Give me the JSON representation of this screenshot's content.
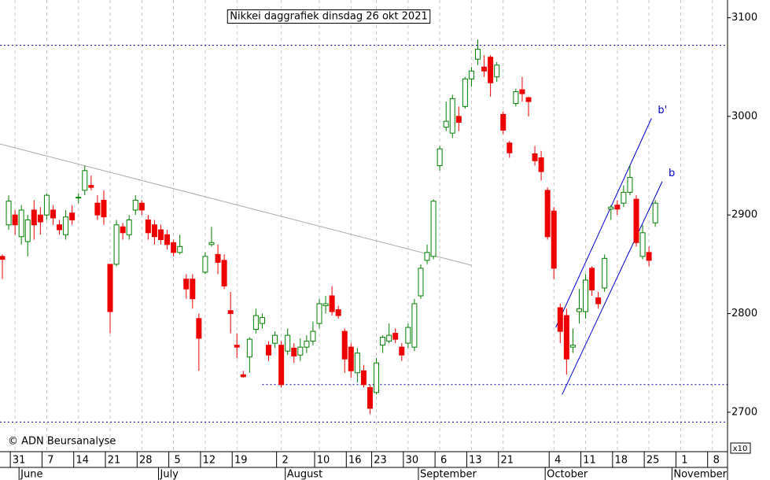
{
  "chart_data": {
    "type": "candlestick",
    "title": "Nikkei daggrafiek dinsdag 26 okt 2021",
    "copyright": "© ADN Beursanalyse",
    "scale_note": "x10",
    "categories": [
      null,
      null,
      "31",
      null,
      null,
      null,
      null,
      "7",
      null,
      null,
      null,
      null,
      "14",
      null,
      null,
      null,
      null,
      "21",
      null,
      null,
      null,
      null,
      "28",
      null,
      null,
      null,
      null,
      "5",
      null,
      null,
      null,
      null,
      "12",
      null,
      null,
      null,
      null,
      "19",
      null,
      null,
      null,
      null,
      null,
      null,
      "2",
      null,
      null,
      null,
      null,
      null,
      "10",
      null,
      null,
      null,
      null,
      "16",
      null,
      null,
      null,
      "23",
      null,
      null,
      null,
      null,
      "30",
      null,
      null,
      null,
      null,
      "6",
      null,
      null,
      null,
      null,
      "13",
      null,
      null,
      null,
      null,
      "21",
      null,
      null,
      null,
      null,
      null,
      null,
      null,
      "4",
      null,
      null,
      null,
      null,
      "11",
      null,
      null,
      null,
      null,
      "18",
      null,
      null,
      null,
      null,
      "25",
      null,
      null,
      null,
      null,
      "1",
      null,
      null,
      null,
      null,
      "8"
    ],
    "months": [
      null,
      null,
      null,
      "June",
      null,
      null,
      null,
      null,
      null,
      null,
      null,
      null,
      null,
      null,
      null,
      null,
      null,
      null,
      null,
      null,
      null,
      null,
      null,
      null,
      null,
      "July",
      null,
      null,
      null,
      null,
      null,
      null,
      null,
      null,
      null,
      null,
      null,
      null,
      null,
      null,
      null,
      null,
      null,
      null,
      null,
      "August",
      null,
      null,
      null,
      null,
      null,
      null,
      null,
      null,
      null,
      null,
      null,
      null,
      null,
      null,
      null,
      null,
      null,
      null,
      null,
      null,
      "September",
      null,
      null,
      null,
      null,
      null,
      null,
      null,
      null,
      null,
      null,
      null,
      null,
      null,
      null,
      null,
      null,
      null,
      null,
      null,
      "October",
      null,
      null,
      null,
      null,
      null,
      null,
      null,
      null,
      null,
      null,
      null,
      null,
      null,
      null,
      null,
      null,
      null,
      null,
      null,
      "November",
      null,
      null,
      null,
      null,
      null
    ],
    "open": [
      2858,
      2890,
      2900,
      2878,
      2873,
      2905,
      2900,
      2900,
      2905,
      2890,
      2880,
      2902,
      2918,
      2925,
      2930,
      2912,
      2915,
      2850,
      2850,
      2888,
      2880,
      2905,
      2912,
      2895,
      2890,
      2885,
      2880,
      2872,
      2862,
      2835,
      2835,
      2795,
      2842,
      2870,
      2860,
      2854,
      2803,
      2768,
      2738,
      2756,
      2784,
      2790,
      2768,
      2770,
      2768,
      2762,
      2765,
      2758,
      2766,
      2772,
      2790,
      2808,
      2818,
      2804,
      2782,
      2766,
      2740,
      2742,
      2725,
      2720,
      2768,
      2772,
      2780,
      2766,
      2770,
      2766,
      2818,
      2854,
      2858,
      2950,
      2989,
      2983,
      3000,
      3010,
      3038,
      3058,
      3050,
      3060,
      3040,
      3002,
      2973,
      3013,
      3027,
      3019,
      2962,
      2958,
      2925,
      2904,
      2806,
      2798,
      2766,
      2802,
      2802,
      2846,
      2816,
      2826,
      2906,
      2910,
      2912,
      2923,
      2916,
      2858,
      2862,
      2892,
      null,
      null,
      null,
      null,
      null,
      null,
      null,
      null,
      null
    ],
    "high": [
      2860,
      2920,
      2905,
      2910,
      2900,
      2915,
      2908,
      2922,
      2910,
      2895,
      2905,
      2910,
      2922,
      2950,
      2940,
      2920,
      2925,
      2850,
      2895,
      2892,
      2900,
      2920,
      2915,
      2900,
      2895,
      2890,
      2885,
      2875,
      2880,
      2840,
      2840,
      2800,
      2862,
      2888,
      2870,
      2860,
      2822,
      2780,
      2742,
      2776,
      2805,
      2800,
      2772,
      2782,
      2772,
      2785,
      2770,
      2775,
      2778,
      2792,
      2815,
      2818,
      2828,
      2808,
      2785,
      2770,
      2765,
      2748,
      2728,
      2755,
      2778,
      2790,
      2785,
      2770,
      2790,
      2815,
      2850,
      2870,
      2916,
      2970,
      3015,
      3022,
      3010,
      3040,
      3050,
      3078,
      3062,
      3062,
      3055,
      3005,
      2975,
      3028,
      3040,
      3020,
      2970,
      2965,
      2928,
      2908,
      2810,
      2805,
      2785,
      2825,
      2840,
      2848,
      2822,
      2860,
      2910,
      2915,
      2930,
      2950,
      2920,
      2890,
      2868,
      2915,
      null,
      null,
      null,
      null,
      null,
      null,
      null,
      null,
      null
    ],
    "low": [
      2835,
      2885,
      2880,
      2870,
      2858,
      2875,
      2880,
      2895,
      2890,
      2880,
      2875,
      2890,
      2912,
      2920,
      2925,
      2895,
      2890,
      2780,
      2848,
      2875,
      2875,
      2900,
      2900,
      2875,
      2870,
      2870,
      2865,
      2858,
      2860,
      2815,
      2805,
      2742,
      2840,
      2868,
      2840,
      2825,
      2780,
      2755,
      2735,
      2740,
      2780,
      2785,
      2752,
      2765,
      2725,
      2758,
      2750,
      2752,
      2760,
      2768,
      2785,
      2800,
      2798,
      2795,
      2740,
      2735,
      2730,
      2725,
      2698,
      2718,
      2760,
      2770,
      2770,
      2752,
      2765,
      2762,
      2815,
      2850,
      2855,
      2945,
      2985,
      2978,
      2985,
      3008,
      3030,
      3052,
      3040,
      3020,
      3035,
      2982,
      2958,
      3010,
      3015,
      3000,
      2950,
      2935,
      2875,
      2835,
      2770,
      2738,
      2760,
      2790,
      2795,
      2818,
      2805,
      2822,
      2895,
      2900,
      2908,
      2920,
      2868,
      2855,
      2848,
      2888,
      null,
      null,
      null,
      null,
      null,
      null,
      null,
      null,
      null
    ],
    "close": [
      2855,
      2914,
      2890,
      2905,
      2895,
      2890,
      2893,
      2920,
      2897,
      2885,
      2898,
      2895,
      2918,
      2945,
      2928,
      2900,
      2898,
      2802,
      2890,
      2882,
      2895,
      2915,
      2905,
      2882,
      2878,
      2875,
      2870,
      2862,
      2868,
      2825,
      2815,
      2775,
      2858,
      2872,
      2852,
      2828,
      2800,
      2766,
      2736,
      2774,
      2798,
      2796,
      2758,
      2778,
      2728,
      2778,
      2757,
      2766,
      2772,
      2782,
      2810,
      2810,
      2802,
      2798,
      2754,
      2742,
      2760,
      2728,
      2704,
      2750,
      2776,
      2778,
      2774,
      2758,
      2786,
      2810,
      2846,
      2862,
      2914,
      2967,
      2995,
      3018,
      2994,
      3038,
      3046,
      3068,
      3046,
      3034,
      3052,
      2986,
      2963,
      3025,
      3023,
      3015,
      2955,
      2944,
      2878,
      2846,
      2782,
      2754,
      2768,
      2805,
      2834,
      2824,
      2810,
      2856,
      2908,
      2906,
      2923,
      2938,
      2872,
      2882,
      2854,
      2912,
      null,
      null,
      null,
      null,
      null,
      null,
      null,
      null,
      null
    ],
    "up_color": "#008000",
    "down_color": "#ee0000",
    "ylim": [
      2660,
      3118
    ],
    "yticks": [
      2700,
      2800,
      2900,
      3000,
      3100
    ],
    "hlines": [
      {
        "value": 3072,
        "color": "#0000aa"
      },
      {
        "value": 2728,
        "from": 41,
        "color": "#0000aa"
      },
      {
        "value": 2690,
        "color": "#0000aa"
      }
    ],
    "trendlines": [
      {
        "from": [
          -0.37,
          2972
        ],
        "to": [
          74,
          2849
        ],
        "color": "#aaaaaa"
      },
      {
        "from": [
          88.3,
          2718
        ],
        "to": [
          104.1,
          2934
        ],
        "color": "#0000cc",
        "label": "b"
      },
      {
        "from": [
          87.3,
          2786
        ],
        "to": [
          102.4,
          2998
        ],
        "color": "#0000cc",
        "label": "b'"
      }
    ]
  }
}
